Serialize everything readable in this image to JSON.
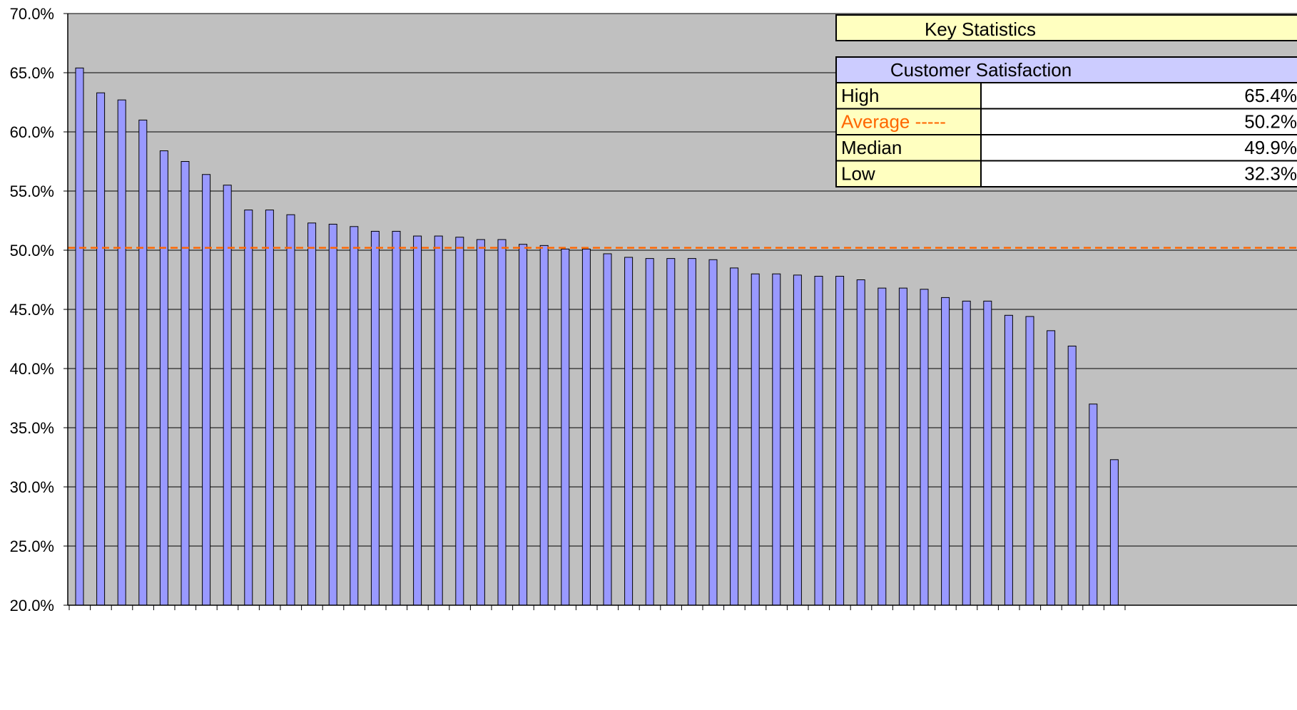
{
  "chart_data": {
    "type": "bar",
    "ylim": [
      20,
      70
    ],
    "y_ticks": [
      "70.0%",
      "65.0%",
      "60.0%",
      "55.0%",
      "50.0%",
      "45.0%",
      "40.0%",
      "35.0%",
      "30.0%",
      "25.0%",
      "20.0%"
    ],
    "y_tick_values": [
      70,
      65,
      60,
      55,
      50,
      45,
      40,
      35,
      30,
      25,
      20
    ],
    "grid": true,
    "colors": {
      "plot_background": "#c0c0c0",
      "bar_fill": "#9999ff",
      "bar_stroke": "#000000",
      "average_line": "#ff6600",
      "gridline": "#000000"
    },
    "average_line_value": 50.2,
    "values": [
      65.4,
      63.3,
      62.7,
      61.0,
      58.4,
      57.5,
      56.4,
      55.5,
      53.4,
      53.4,
      53.0,
      52.3,
      52.2,
      52.0,
      51.6,
      51.6,
      51.2,
      51.2,
      51.1,
      50.9,
      50.9,
      50.5,
      50.4,
      50.1,
      50.1,
      49.7,
      49.4,
      49.3,
      49.3,
      49.3,
      49.2,
      48.5,
      48.0,
      48.0,
      47.9,
      47.8,
      47.8,
      47.5,
      46.8,
      46.8,
      46.7,
      46.0,
      45.7,
      45.7,
      44.5,
      44.4,
      43.2,
      41.9,
      37.0,
      32.3
    ]
  },
  "key_statistics": {
    "title": "Key Statistics",
    "section_header": "Customer Satisfaction",
    "rows": [
      {
        "label": "High",
        "value": "65.4%"
      },
      {
        "label": "Average -----",
        "value": "50.2%"
      },
      {
        "label": "Median",
        "value": "49.9%"
      },
      {
        "label": "Low",
        "value": "32.3%"
      }
    ],
    "colors": {
      "title_bg": "#ffffc0",
      "header_bg": "#ccccff",
      "label_bg": "#ffffc0",
      "value_bg": "#ffffff",
      "average_text": "#ff6600"
    }
  }
}
